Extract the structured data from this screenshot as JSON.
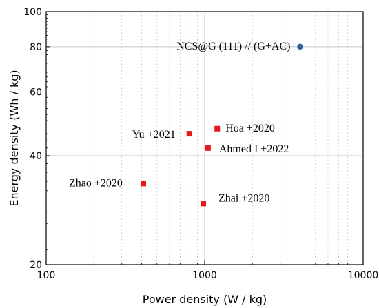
{
  "chart_data": {
    "type": "scatter",
    "title": "",
    "xlabel": "Power density (W / kg)",
    "ylabel": "Energy density (Wh / kg)",
    "xscale": "log",
    "yscale": "log",
    "xlim": [
      100,
      10000
    ],
    "ylim": [
      20,
      100
    ],
    "xticks": [
      100,
      1000,
      10000
    ],
    "xtick_labels": [
      "100",
      "1000",
      "10000"
    ],
    "yticks": [
      20,
      40,
      60,
      80,
      100
    ],
    "ytick_labels": [
      "20",
      "40",
      "60",
      "80",
      "100"
    ],
    "grid": "major",
    "points": [
      {
        "label": "NCS@G (111) // (G+AC)",
        "x": 4000,
        "y": 80,
        "marker": "circle",
        "color": "#2e5e9e"
      },
      {
        "label": "Yu +2021",
        "x": 800,
        "y": 46,
        "marker": "square",
        "color": "#e8191a"
      },
      {
        "label": "Hoa +2020",
        "x": 1200,
        "y": 47.5,
        "marker": "square",
        "color": "#e8191a"
      },
      {
        "label": "Ahmed I +2022",
        "x": 1050,
        "y": 42,
        "marker": "square",
        "color": "#e8191a"
      },
      {
        "label": "Zhao +2020",
        "x": 410,
        "y": 33.5,
        "marker": "square",
        "color": "#e8191a"
      },
      {
        "label": "Zhai +2020",
        "x": 980,
        "y": 29.5,
        "marker": "square",
        "color": "#e8191a"
      }
    ]
  }
}
